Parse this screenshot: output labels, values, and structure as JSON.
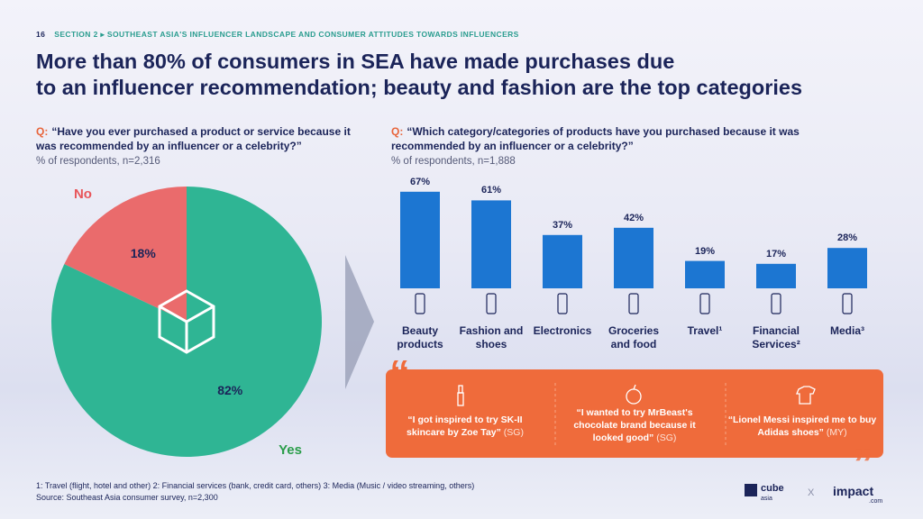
{
  "header": {
    "page": "16",
    "section": "SECTION 2 ▸ SOUTHEAST ASIA'S INFLUENCER LANDSCAPE AND CONSUMER ATTITUDES TOWARDS INFLUENCERS",
    "title_lines": [
      "More than 80% of consumers in SEA have made purchases due",
      "to an influencer recommendation; beauty and fashion are the top categories"
    ]
  },
  "chart_data": [
    {
      "type": "pie",
      "q_label": "Q:",
      "title": "“Have you ever purchased a product or service because it was recommended by an influencer or a celebrity?”",
      "subtitle": "% of respondents, n=2,316",
      "categories": [
        "No",
        "Yes"
      ],
      "values": [
        18,
        82
      ],
      "value_labels": [
        "18%",
        "82%"
      ],
      "colors": [
        "#ea6b6c",
        "#2fb594"
      ],
      "label_colors": [
        "#e8555a",
        "#2a9d4a"
      ]
    },
    {
      "type": "bar",
      "q_label": "Q:",
      "title": "“Which category/categories of products have you purchased because it was recommended by an influencer or a celebrity?”",
      "subtitle": "% of respondents, n=1,888",
      "categories": [
        "Beauty products",
        "Fashion and shoes",
        "Electronics",
        "Groceries and food",
        "Travel¹",
        "Financial Services²",
        "Media³"
      ],
      "values": [
        67,
        61,
        37,
        42,
        19,
        17,
        28
      ],
      "value_labels": [
        "67%",
        "61%",
        "37%",
        "42%",
        "19%",
        "17%",
        "28%"
      ],
      "color": "#1c76d2"
    }
  ],
  "quotes": [
    {
      "text": "“I got inspired to try SK-II skincare by Zoe Tay”",
      "country": "(SG)"
    },
    {
      "text": "“I wanted to try MrBeast's chocolate brand because it looked good”",
      "country": "(SG)"
    },
    {
      "text": "“Lionel Messi inspired me to buy Adidas shoes”",
      "country": "(MY)"
    }
  ],
  "footnotes": [
    "1: Travel (flight, hotel and other)  2: Financial services (bank, credit card, others)  3: Media (Music / video streaming, others)",
    "Source: Southeast Asia consumer survey, n=2,300"
  ],
  "logos": {
    "cube": "cube",
    "cube_sub": "asia",
    "x": "X",
    "impact": "impact",
    "impact_sub": ".com"
  }
}
